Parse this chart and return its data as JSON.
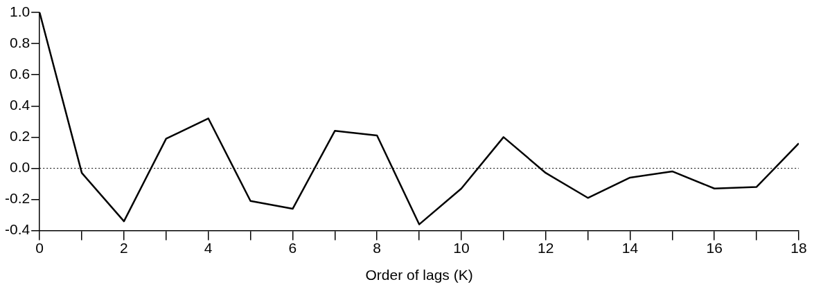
{
  "chart_data": {
    "type": "line",
    "xlabel": "Order of lags (K)",
    "x": [
      0,
      1,
      2,
      3,
      4,
      5,
      6,
      7,
      8,
      9,
      10,
      11,
      12,
      13,
      14,
      15,
      16,
      17,
      18
    ],
    "series": [
      {
        "color": "#000000",
        "values": [
          1.0,
          -0.03,
          -0.34,
          0.19,
          0.32,
          -0.21,
          -0.26,
          0.24,
          0.21,
          -0.36,
          -0.13,
          0.2,
          -0.03,
          -0.19,
          -0.06,
          -0.02,
          -0.13,
          -0.12,
          0.16
        ]
      }
    ],
    "xlim": [
      0,
      18
    ],
    "xticks": [
      0,
      {
        "value": 1,
        "label": null
      },
      2,
      {
        "value": 3,
        "label": null
      },
      4,
      {
        "value": 5,
        "label": null
      },
      6,
      {
        "value": 7,
        "label": null
      },
      8,
      {
        "value": 9,
        "label": null
      },
      10,
      {
        "value": 11,
        "label": null
      },
      12,
      {
        "value": 13,
        "label": null
      },
      14,
      {
        "value": 15,
        "label": null
      },
      16,
      {
        "value": 17,
        "label": null
      },
      18
    ],
    "ylim": [
      -0.4,
      1.0
    ],
    "yticks": [
      {
        "value": -0.4,
        "label": "-0.4"
      },
      {
        "value": -0.2,
        "label": "-0.2"
      },
      {
        "value": 0,
        "label": "0.0"
      },
      {
        "value": 0.2,
        "label": "0.2"
      },
      {
        "value": 0.4,
        "label": "0.4"
      },
      {
        "value": 0.6,
        "label": "0.6"
      },
      {
        "value": 0.8,
        "label": "0.8"
      },
      {
        "value": 1.0,
        "label": "1.0"
      }
    ],
    "ref_lines": [
      {
        "axis": "y",
        "value": 0,
        "color": "#000000",
        "line_style": "dotted"
      }
    ],
    "grid": false,
    "legend": false,
    "marker": "none",
    "line_style": "solid"
  }
}
